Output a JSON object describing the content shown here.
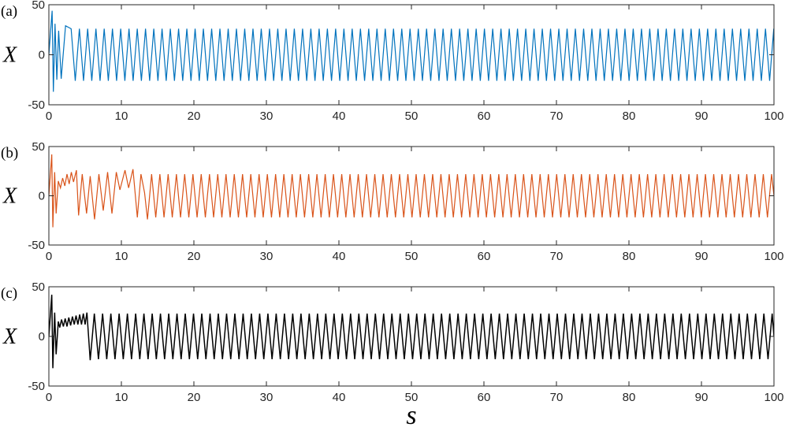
{
  "chart_data": [
    {
      "type": "line",
      "panel_label": "(a)",
      "ylabel": "X",
      "xlabel": "",
      "xlim": [
        0,
        100
      ],
      "ylim": [
        -50,
        50
      ],
      "xticks": [
        0,
        10,
        20,
        30,
        40,
        50,
        60,
        70,
        80,
        90,
        100
      ],
      "yticks": [
        -50,
        0,
        50
      ],
      "grid": false,
      "series": [
        {
          "color": "#0072BD",
          "transient_peaks": [
            [
              0.45,
              44
            ],
            [
              0.62,
              -37
            ],
            [
              0.85,
              31
            ],
            [
              1.1,
              -25
            ],
            [
              1.35,
              24
            ],
            [
              1.7,
              -24
            ],
            [
              2.3,
              29
            ]
          ],
          "settled_start": 2.5,
          "period": 1.14,
          "amplitude": 26
        }
      ]
    },
    {
      "type": "line",
      "panel_label": "(b)",
      "ylabel": "X",
      "xlabel": "",
      "xlim": [
        0,
        100
      ],
      "ylim": [
        -50,
        50
      ],
      "xticks": [
        0,
        10,
        20,
        30,
        40,
        50,
        60,
        70,
        80,
        90,
        100
      ],
      "yticks": [
        -50,
        0,
        50
      ],
      "grid": false,
      "series": [
        {
          "color": "#D95319",
          "transient_peaks": [
            [
              0.4,
              42
            ],
            [
              0.55,
              -32
            ],
            [
              0.8,
              24
            ],
            [
              1.0,
              -18
            ],
            [
              1.3,
              15
            ],
            [
              1.6,
              8
            ],
            [
              1.9,
              18
            ],
            [
              2.2,
              10
            ],
            [
              2.5,
              22
            ],
            [
              2.8,
              12
            ],
            [
              3.1,
              24
            ],
            [
              3.4,
              14
            ],
            [
              3.8,
              26
            ],
            [
              4.1,
              -20
            ],
            [
              4.6,
              22
            ],
            [
              5.2,
              -18
            ],
            [
              5.7,
              20
            ],
            [
              6.3,
              -24
            ],
            [
              6.9,
              22
            ],
            [
              7.5,
              -15
            ],
            [
              8.1,
              24
            ],
            [
              8.7,
              -18
            ],
            [
              9.3,
              24
            ],
            [
              9.8,
              6
            ],
            [
              10.5,
              26
            ],
            [
              11.0,
              8
            ],
            [
              11.6,
              27
            ],
            [
              12.2,
              -22
            ],
            [
              12.7,
              22
            ],
            [
              13.2,
              3
            ],
            [
              13.6,
              -24
            ]
          ],
          "settled_start": 13.6,
          "period": 1.14,
          "amplitude": 22
        }
      ]
    },
    {
      "type": "line",
      "panel_label": "(c)",
      "ylabel": "X",
      "xlabel": "s",
      "xlim": [
        0,
        100
      ],
      "ylim": [
        -50,
        50
      ],
      "xticks": [
        0,
        10,
        20,
        30,
        40,
        50,
        60,
        70,
        80,
        90,
        100
      ],
      "yticks": [
        -50,
        0,
        50
      ],
      "grid": false,
      "series": [
        {
          "color": "#000000",
          "transient_peaks": [
            [
              0.4,
              42
            ],
            [
              0.55,
              -32
            ],
            [
              0.8,
              24
            ],
            [
              1.0,
              -18
            ],
            [
              1.3,
              15
            ],
            [
              1.5,
              9
            ],
            [
              1.75,
              17
            ],
            [
              2.0,
              10
            ],
            [
              2.25,
              18
            ],
            [
              2.5,
              10
            ],
            [
              2.75,
              19
            ],
            [
              3.0,
              11
            ],
            [
              3.25,
              20
            ],
            [
              3.5,
              12
            ],
            [
              3.75,
              21
            ],
            [
              4.0,
              12
            ],
            [
              4.25,
              22
            ],
            [
              4.5,
              12
            ],
            [
              4.75,
              23
            ],
            [
              5.0,
              12
            ],
            [
              5.25,
              24
            ],
            [
              5.7,
              -24
            ]
          ],
          "settled_start": 5.7,
          "period": 1.14,
          "amplitude": 23
        }
      ]
    }
  ]
}
